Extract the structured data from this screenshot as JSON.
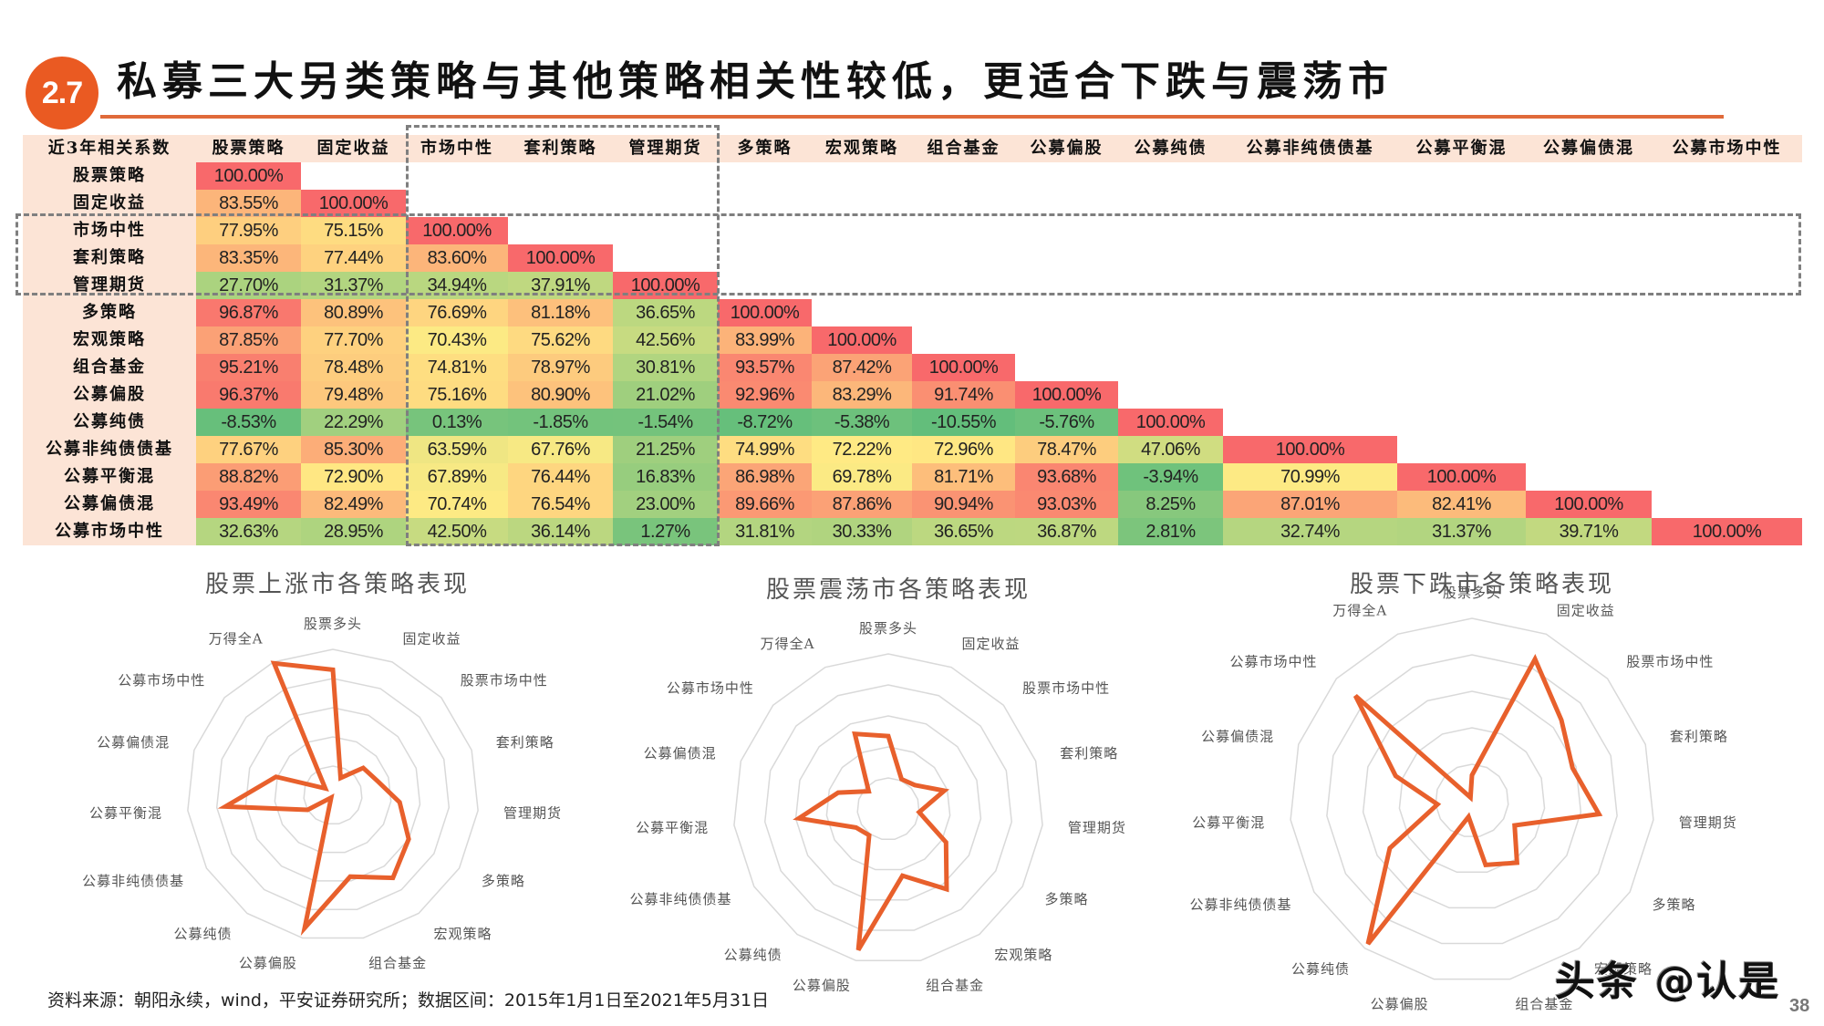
{
  "header": {
    "section_number": "2.7",
    "title": "私募三大另类策略与其他策略相关性较低，更适合下跌与震荡市",
    "accent_color": "#ea5a22"
  },
  "table": {
    "corner_label": "近3年相关系数",
    "columns": [
      "股票策略",
      "固定收益",
      "市场中性",
      "套利策略",
      "管理期货",
      "多策略",
      "宏观策略",
      "组合基金",
      "公募偏股",
      "公募纯债",
      "公募非纯债债基",
      "公募平衡混",
      "公募偏债混",
      "公募市场中性"
    ],
    "rows": [
      {
        "label": "股票策略",
        "values": [
          "100.00%"
        ]
      },
      {
        "label": "固定收益",
        "values": [
          "83.55%",
          "100.00%"
        ]
      },
      {
        "label": "市场中性",
        "values": [
          "77.95%",
          "75.15%",
          "100.00%"
        ]
      },
      {
        "label": "套利策略",
        "values": [
          "83.35%",
          "77.44%",
          "83.60%",
          "100.00%"
        ]
      },
      {
        "label": "管理期货",
        "values": [
          "27.70%",
          "31.37%",
          "34.94%",
          "37.91%",
          "100.00%"
        ]
      },
      {
        "label": "多策略",
        "values": [
          "96.87%",
          "80.89%",
          "76.69%",
          "81.18%",
          "36.65%",
          "100.00%"
        ]
      },
      {
        "label": "宏观策略",
        "values": [
          "87.85%",
          "77.70%",
          "70.43%",
          "75.62%",
          "42.56%",
          "83.99%",
          "100.00%"
        ]
      },
      {
        "label": "组合基金",
        "values": [
          "95.21%",
          "78.48%",
          "74.81%",
          "78.97%",
          "30.81%",
          "93.57%",
          "87.42%",
          "100.00%"
        ]
      },
      {
        "label": "公募偏股",
        "values": [
          "96.37%",
          "79.48%",
          "75.16%",
          "80.90%",
          "21.02%",
          "92.96%",
          "83.29%",
          "91.74%",
          "100.00%"
        ]
      },
      {
        "label": "公募纯债",
        "values": [
          "-8.53%",
          "22.29%",
          "0.13%",
          "-1.85%",
          "-1.54%",
          "-8.72%",
          "-5.38%",
          "-10.55%",
          "-5.76%",
          "100.00%"
        ]
      },
      {
        "label": "公募非纯债债基",
        "values": [
          "77.67%",
          "85.30%",
          "63.59%",
          "67.76%",
          "21.25%",
          "74.99%",
          "72.22%",
          "72.96%",
          "78.47%",
          "47.06%",
          "100.00%"
        ]
      },
      {
        "label": "公募平衡混",
        "values": [
          "88.82%",
          "72.90%",
          "67.89%",
          "76.44%",
          "16.83%",
          "86.98%",
          "69.78%",
          "81.71%",
          "93.68%",
          "-3.94%",
          "70.99%",
          "100.00%"
        ]
      },
      {
        "label": "公募偏债混",
        "values": [
          "93.49%",
          "82.49%",
          "70.74%",
          "76.54%",
          "23.00%",
          "89.66%",
          "87.86%",
          "90.94%",
          "93.03%",
          "8.25%",
          "87.01%",
          "82.41%",
          "100.00%"
        ]
      },
      {
        "label": "公募市场中性",
        "values": [
          "32.63%",
          "28.95%",
          "42.50%",
          "36.14%",
          "1.27%",
          "31.81%",
          "30.33%",
          "36.65%",
          "36.87%",
          "2.81%",
          "32.74%",
          "31.37%",
          "39.71%",
          "100.00%"
        ]
      }
    ],
    "color_scale": {
      "low": "#63be7b",
      "mid": "#ffeb84",
      "high": "#f8696b",
      "low_value": -10.55,
      "mid_value": 72,
      "high_value": 100
    },
    "highlight_boxes": [
      {
        "label": "私募三大另类策略-列",
        "columns": [
          "市场中性",
          "套利策略",
          "管理期货"
        ]
      },
      {
        "label": "私募三大另类策略-行",
        "rows": [
          "市场中性",
          "套利策略",
          "管理期货"
        ]
      }
    ]
  },
  "chart_data": [
    {
      "type": "radar",
      "title": "股票上涨市各策略表现",
      "categories": [
        "股票多头",
        "固定收益",
        "股票市场中性",
        "套利策略",
        "管理期货",
        "多策略",
        "宏观策略",
        "组合基金",
        "公募偏股",
        "公募纯债",
        "公募非纯债债基",
        "公募平衡混",
        "公募偏债混",
        "公募市场中性",
        "万得全A"
      ],
      "values": [
        0.86,
        0.13,
        0.28,
        0.32,
        0.46,
        0.6,
        0.7,
        0.57,
        0.93,
        0.02,
        0.2,
        0.74,
        0.41,
        0.07,
        0.99
      ],
      "value_scale": "relative (0 = center, 1 = outer ring)",
      "rings": 5,
      "line_color": "#e8602c"
    },
    {
      "type": "radar",
      "title": "股票震荡市各策略表现",
      "categories": [
        "股票多头",
        "固定收益",
        "股票市场中性",
        "套利策略",
        "管理期货",
        "多策略",
        "宏观策略",
        "组合基金",
        "公募偏股",
        "公募纯债",
        "公募非纯债债基",
        "公募平衡混",
        "公募偏债混",
        "公募市场中性",
        "万得全A"
      ],
      "values": [
        0.47,
        0.21,
        0.23,
        0.38,
        0.2,
        0.43,
        0.64,
        0.44,
        0.93,
        0.21,
        0.24,
        0.58,
        0.34,
        0.17,
        0.53
      ],
      "value_scale": "relative (0 = center, 1 = outer ring)",
      "rings": 5,
      "line_color": "#e8602c"
    },
    {
      "type": "radar",
      "title": "股票下跌市各策略表现",
      "categories": [
        "股票多头",
        "固定收益",
        "股票市场中性",
        "套利策略",
        "管理期货",
        "多策略",
        "宏观策略",
        "组合基金",
        "公募偏股",
        "公募纯债",
        "公募非纯债债基",
        "公募平衡混",
        "公募偏债混",
        "公募市场中性",
        "万得全A"
      ],
      "values": [
        0.14,
        0.85,
        0.66,
        0.58,
        0.7,
        0.27,
        0.42,
        0.36,
        0.09,
        0.97,
        0.52,
        0.19,
        0.44,
        0.86,
        0.02
      ],
      "value_scale": "relative (0 = center, 1 = outer ring)",
      "rings": 5,
      "line_color": "#e8602c"
    }
  ],
  "footer": {
    "source": "资料来源：朝阳永续，wind，平安证券研究所；数据区间：2015年1月1日至2021年5月31日",
    "watermark": "头条 @认是",
    "page_number": "38"
  }
}
